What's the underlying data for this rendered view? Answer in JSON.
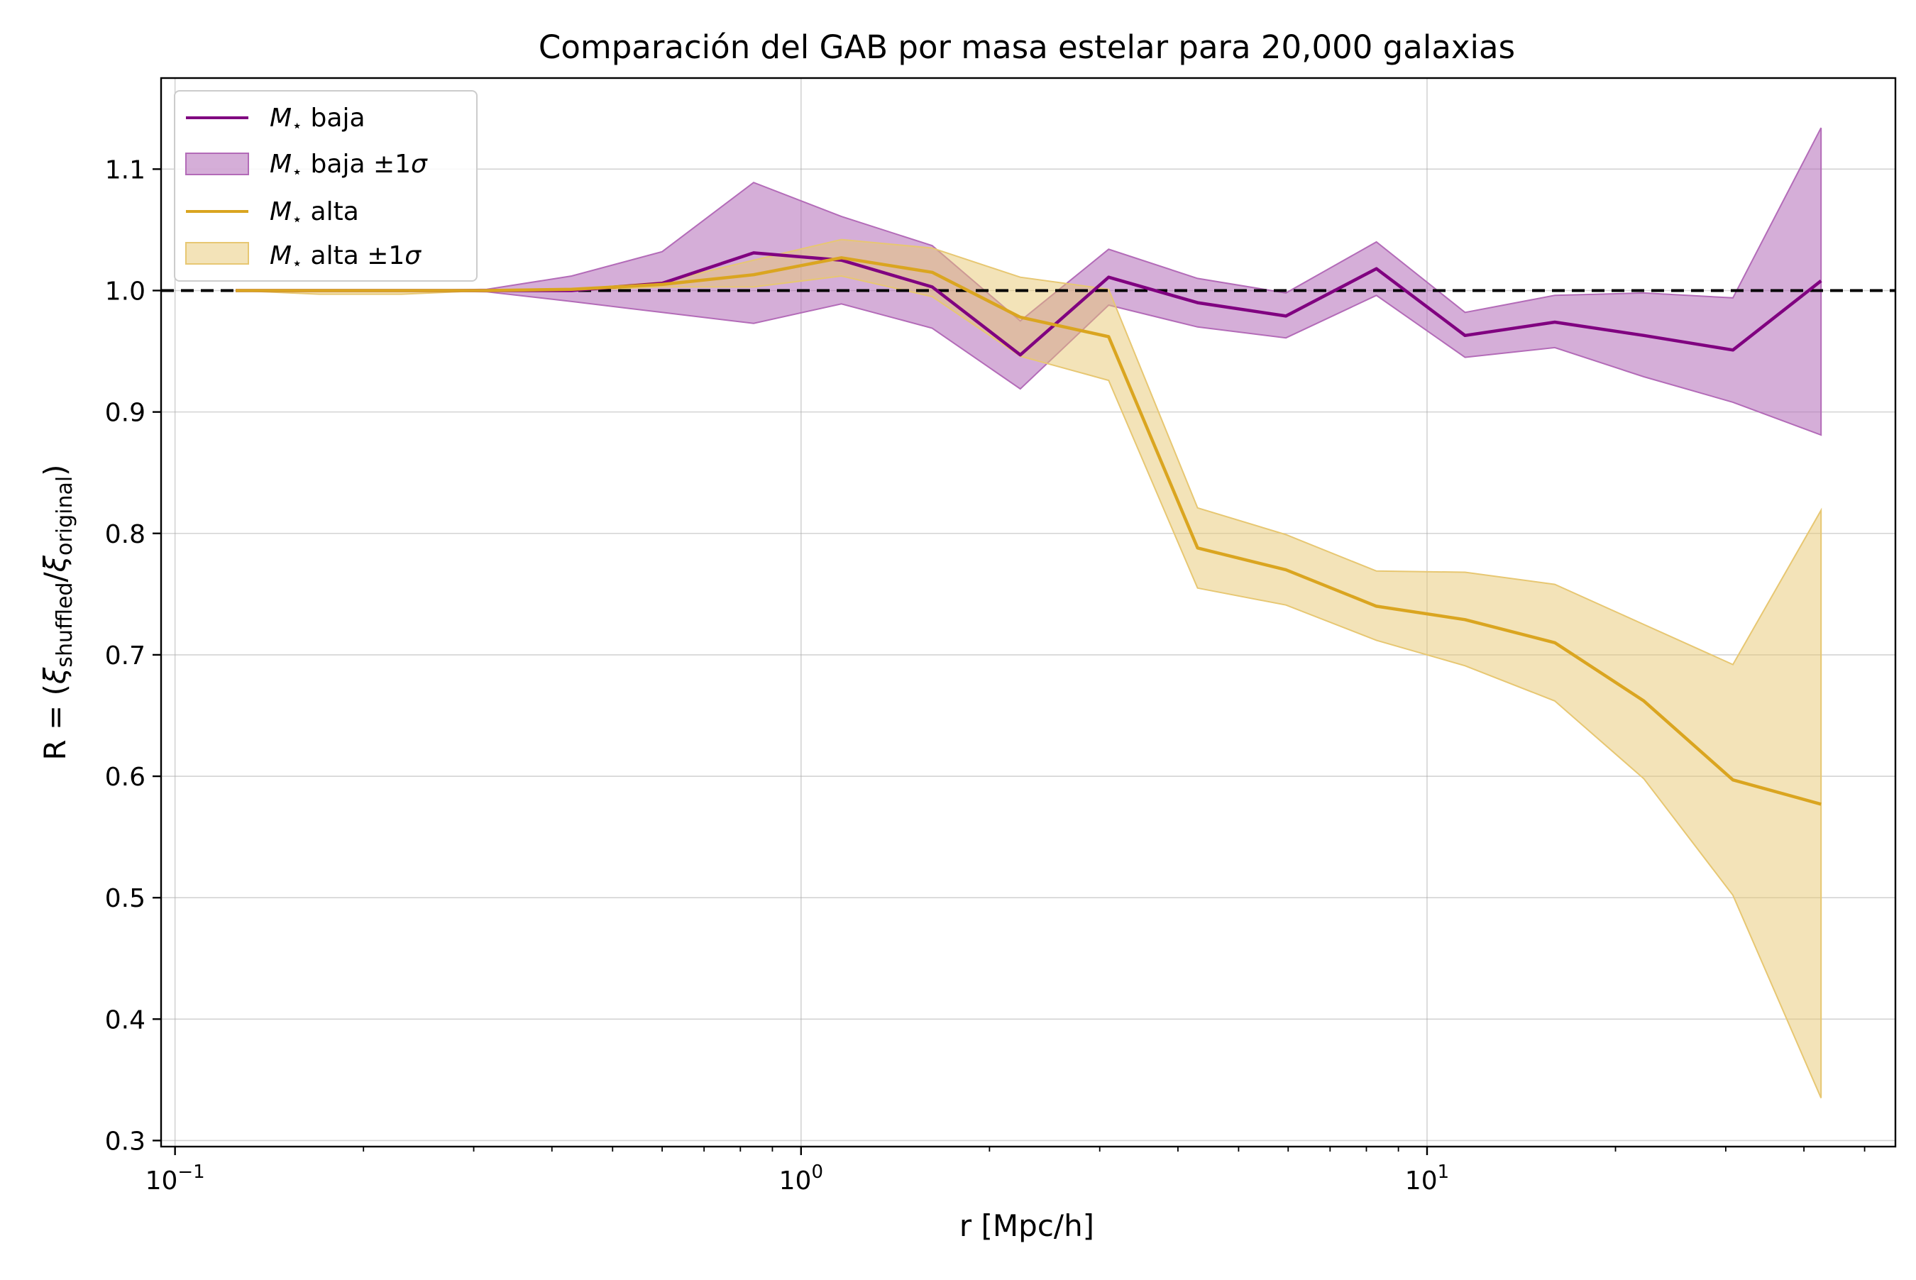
{
  "chart_data": {
    "type": "line",
    "title": "Comparación del GAB por masa estelar para 20,000 galaxias",
    "xlabel": "r [Mpc/h]",
    "ylabel": {
      "prefix": "R = (",
      "xi": "ξ",
      "sub1": "shuffled",
      "slash": "/",
      "sub2": "original",
      "suffix": ")"
    },
    "x_scale": "log",
    "xlim": [
      0.095,
      56
    ],
    "ylim": [
      0.295,
      1.175
    ],
    "grid": true,
    "legend_position": "upper-left",
    "xticks": [
      {
        "value": 0.1,
        "base": "10",
        "exp": "−1"
      },
      {
        "value": 1,
        "base": "10",
        "exp": "0"
      },
      {
        "value": 10,
        "base": "10",
        "exp": "1"
      }
    ],
    "yticks": [
      {
        "value": 0.3,
        "label": "0.3"
      },
      {
        "value": 0.4,
        "label": "0.4"
      },
      {
        "value": 0.5,
        "label": "0.5"
      },
      {
        "value": 0.6,
        "label": "0.6"
      },
      {
        "value": 0.7,
        "label": "0.7"
      },
      {
        "value": 0.8,
        "label": "0.8"
      },
      {
        "value": 0.9,
        "label": "0.9"
      },
      {
        "value": 1.0,
        "label": "1.0"
      },
      {
        "value": 1.1,
        "label": "1.1"
      }
    ],
    "reference_line": {
      "y": 1.0,
      "color": "#000000",
      "style": "dashed"
    },
    "x": [
      0.125,
      0.17,
      0.23,
      0.315,
      0.43,
      0.6,
      0.84,
      1.16,
      1.62,
      2.24,
      3.1,
      4.3,
      5.95,
      8.3,
      11.5,
      16.0,
      22.2,
      30.8,
      42.6
    ],
    "series": [
      {
        "name": "M⋆ baja",
        "legend_symbol": "M",
        "legend_subscript": "⋆",
        "legend_word": "baja",
        "color": "#800080",
        "values": [
          1.0,
          1.0,
          1.0,
          1.0,
          1.0,
          1.006,
          1.031,
          1.025,
          1.003,
          0.947,
          1.011,
          0.99,
          0.979,
          1.018,
          0.963,
          0.974,
          0.963,
          0.951,
          1.008
        ],
        "band_upper": [
          1.0,
          1.0,
          1.0,
          1.001,
          1.012,
          1.032,
          1.089,
          1.061,
          1.037,
          0.975,
          1.034,
          1.01,
          0.998,
          1.04,
          0.982,
          0.996,
          0.998,
          0.994,
          1.134
        ],
        "band_lower": [
          1.0,
          1.0,
          1.0,
          0.999,
          0.991,
          0.982,
          0.973,
          0.989,
          0.969,
          0.919,
          0.988,
          0.97,
          0.961,
          0.996,
          0.945,
          0.953,
          0.929,
          0.908,
          0.881
        ],
        "band_legend_word": "baja ±1",
        "band_legend_sigma": "σ",
        "band_color": "#b36bb8"
      },
      {
        "name": "M⋆ alta",
        "legend_symbol": "M",
        "legend_subscript": "⋆",
        "legend_word": "alta",
        "color": "#DAA520",
        "values": [
          1.0,
          1.0,
          1.0,
          1.0,
          1.001,
          1.005,
          1.013,
          1.027,
          1.015,
          0.978,
          0.962,
          0.788,
          0.77,
          0.74,
          0.729,
          0.71,
          0.662,
          0.597,
          0.577
        ],
        "band_upper": [
          1.0,
          1.0,
          1.0,
          1.0,
          1.001,
          1.007,
          1.025,
          1.042,
          1.035,
          1.011,
          1.001,
          0.821,
          0.799,
          0.769,
          0.768,
          0.758,
          0.725,
          0.692,
          0.819
        ],
        "band_lower": [
          1.0,
          0.997,
          0.997,
          1.0,
          1.0,
          1.003,
          1.003,
          1.012,
          0.995,
          0.946,
          0.926,
          0.755,
          0.741,
          0.712,
          0.691,
          0.662,
          0.598,
          0.502,
          0.335
        ],
        "band_legend_word": "alta ±1",
        "band_legend_sigma": "σ",
        "band_color": "#e7c772"
      }
    ]
  }
}
